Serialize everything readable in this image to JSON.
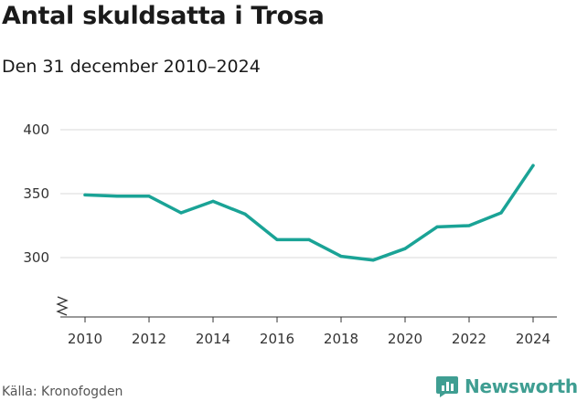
{
  "title": "Antal skuldsatta i Trosa",
  "subtitle": "Den 31 december 2010–2024",
  "source": "Källa: Kronofogden",
  "brand": {
    "name": "Newsworthy",
    "icon": "newsworthy-logo-icon",
    "color": "#3f9e92"
  },
  "chart_data": {
    "type": "line",
    "title": "Antal skuldsatta i Trosa",
    "subtitle": "Den 31 december 2010–2024",
    "x": [
      2010,
      2011,
      2012,
      2013,
      2014,
      2015,
      2016,
      2017,
      2018,
      2019,
      2020,
      2021,
      2022,
      2023,
      2024
    ],
    "series": [
      {
        "values": [
          349,
          348,
          348,
          335,
          344,
          334,
          314,
          314,
          301,
          298,
          307,
          324,
          325,
          335,
          372
        ],
        "color": "#1aa396"
      }
    ],
    "x_ticks": [
      "2010",
      "2012",
      "2014",
      "2016",
      "2018",
      "2020",
      "2022",
      "2024"
    ],
    "y_ticks": [
      "300",
      "350",
      "400"
    ],
    "ylim": [
      250,
      400
    ],
    "y_axis_break": true,
    "grid": true,
    "legend": "none"
  }
}
